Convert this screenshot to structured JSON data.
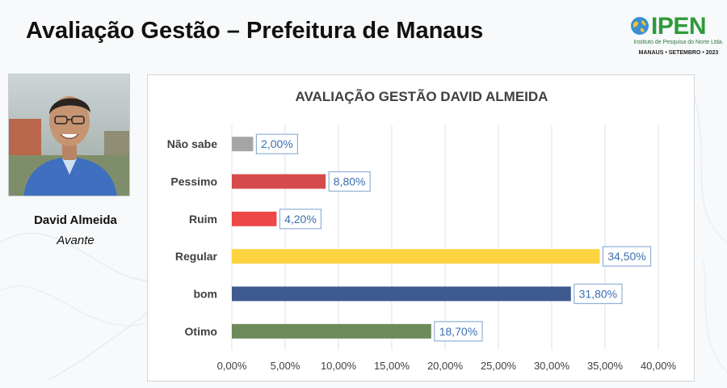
{
  "page": {
    "title": "Avaliação Gestão – Prefeitura de Manaus"
  },
  "logo": {
    "wordmark": "IPEN",
    "subtitle": "Instituto de Pesquisa do Norte Ltda.",
    "footer": "MANAUS • SETEMBRO • 2023",
    "colors": {
      "green": "#2e9a3a",
      "globe": "#3b8fd0"
    }
  },
  "candidate": {
    "name": "David Almeida",
    "party": "Avante"
  },
  "chart_data": {
    "type": "bar",
    "orientation": "horizontal",
    "title": "AVALIAÇÃO GESTÃO DAVID ALMEIDA",
    "categories": [
      "Não sabe",
      "Pessimo",
      "Ruim",
      "Regular",
      "bom",
      "Otimo"
    ],
    "values": [
      2.0,
      8.8,
      4.2,
      34.5,
      31.8,
      18.7
    ],
    "value_labels": [
      "2,00%",
      "8,80%",
      "4,20%",
      "34,50%",
      "31,80%",
      "18,70%"
    ],
    "colors": [
      "#a5a5a5",
      "#d54a4a",
      "#ee4747",
      "#fdd33f",
      "#3f5a8f",
      "#6d8a5b"
    ],
    "xlim": [
      0,
      40
    ],
    "xticks": [
      "0,00%",
      "5,00%",
      "10,00%",
      "15,00%",
      "20,00%",
      "25,00%",
      "30,00%",
      "35,00%",
      "40,00%"
    ],
    "grid": true,
    "label_color": "#3a6fb0"
  }
}
